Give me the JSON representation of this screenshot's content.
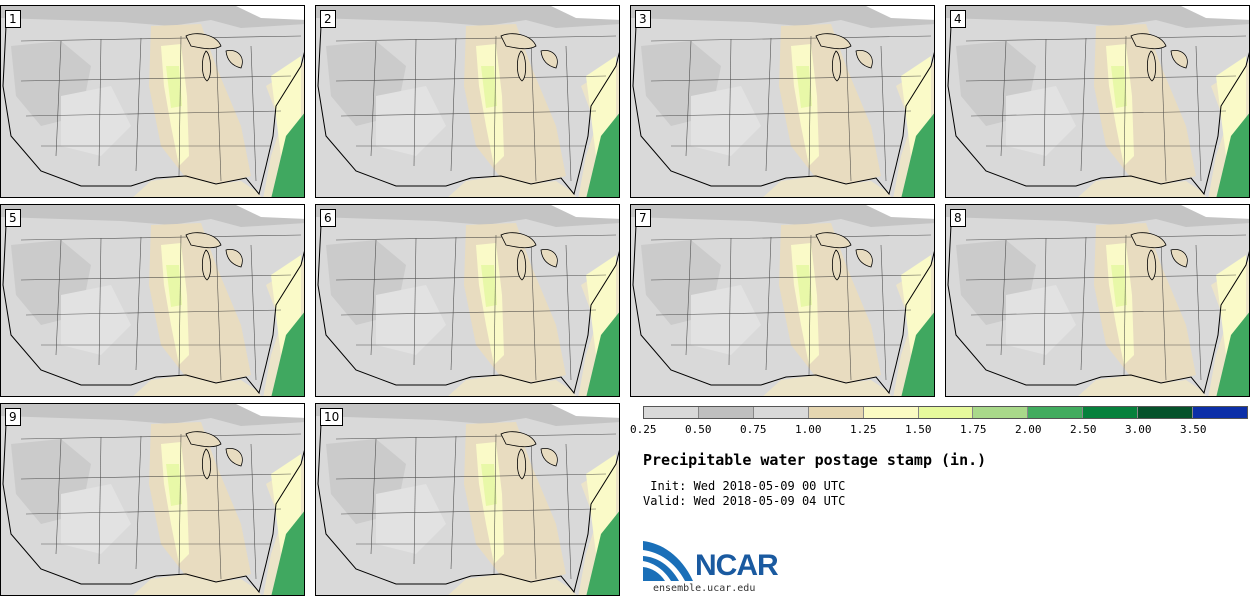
{
  "panels": [
    {
      "label": "1"
    },
    {
      "label": "2"
    },
    {
      "label": "3"
    },
    {
      "label": "4"
    },
    {
      "label": "5"
    },
    {
      "label": "6"
    },
    {
      "label": "7"
    },
    {
      "label": "8"
    },
    {
      "label": "9"
    },
    {
      "label": "10"
    }
  ],
  "map": {
    "region": "Contiguous United States",
    "colors": {
      "low": "#d9d9d9",
      "mid_gray": "#c4c4c4",
      "tan": "#e8dcc0",
      "light_yellow": "#fafac8",
      "yellow_green": "#e8f8a8",
      "green": "#40a860",
      "ocean_tan": "#ece4c8"
    }
  },
  "colorbar": {
    "colors": [
      "#d9d9d9",
      "#bfbfbf",
      "#d9d9d9",
      "#e5d6b1",
      "#fbfbc3",
      "#e6f99c",
      "#a9d98a",
      "#42ac5f",
      "#06813c",
      "#05522b",
      "#0c2fa8"
    ],
    "ticks": [
      "0.25",
      "0.50",
      "0.75",
      "1.00",
      "1.25",
      "1.50",
      "1.75",
      "2.00",
      "2.50",
      "3.00",
      "3.50"
    ]
  },
  "title": "Precipitable water postage stamp (in.)",
  "init": " Init: Wed 2018-05-09 00 UTC",
  "valid": "Valid: Wed 2018-05-09 04 UTC",
  "logo": {
    "text": "NCAR",
    "url": "ensemble.ucar.edu"
  }
}
